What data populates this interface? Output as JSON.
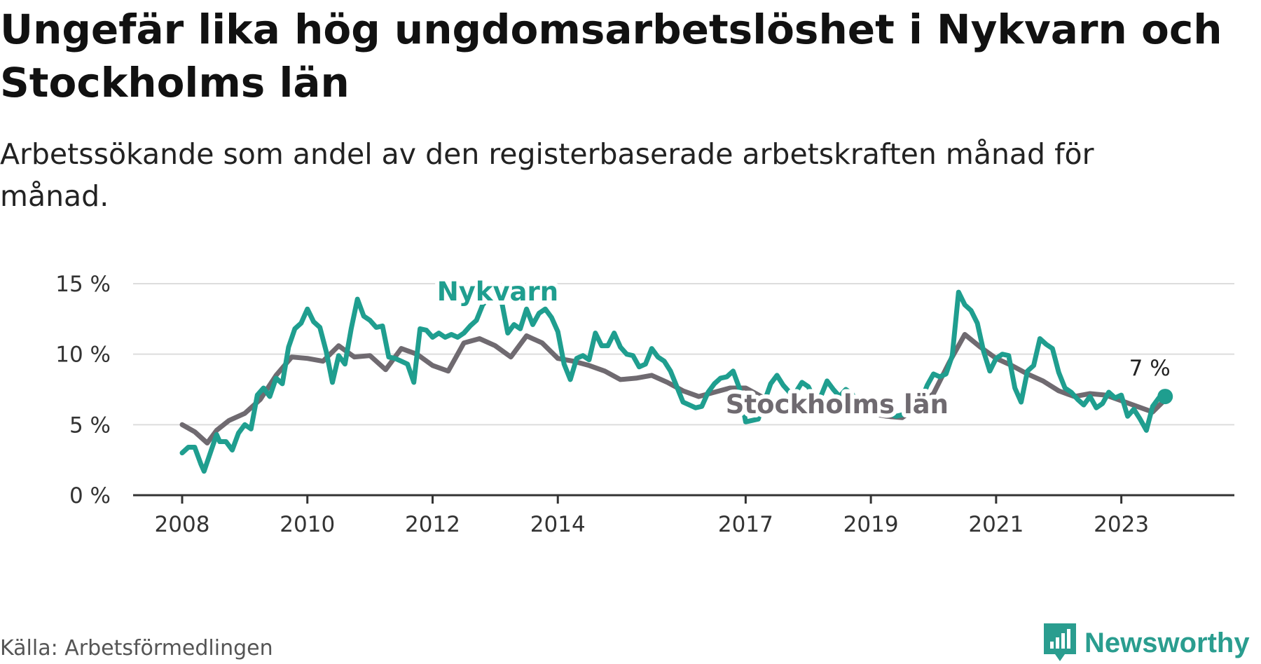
{
  "header": {
    "title": "Ungefär lika hög ungdomsarbetslöshet i Nykvarn och Stockholms län",
    "subtitle": "Arbetssökande som andel av den registerbaserade arbetskraften månad för månad."
  },
  "footer": {
    "source": "Källa: Arbetsförmedlingen",
    "brand": "Newsworthy"
  },
  "colors": {
    "nykvarn": "#1f9e8f",
    "stockholm": "#6f6a70",
    "grid": "#dddddd",
    "axis": "#333333"
  },
  "chart_data": {
    "type": "line",
    "title": "Ungefär lika hög ungdomsarbetslöshet i Nykvarn och Stockholms län",
    "xlabel": "",
    "ylabel": "",
    "xlim": [
      2008.0,
      2024.0
    ],
    "ylim": [
      0,
      15
    ],
    "yticks": [
      0,
      5,
      10,
      15
    ],
    "ytick_labels": [
      "0 %",
      "5 %",
      "10 %",
      "15 %"
    ],
    "xticks": [
      2008,
      2010,
      2012,
      2014,
      2017,
      2019,
      2021,
      2023
    ],
    "xtick_labels": [
      "2008",
      "2010",
      "2012",
      "2014",
      "2017",
      "2019",
      "2021",
      "2023"
    ],
    "grid": true,
    "end_label": "7 %",
    "series": [
      {
        "name": "Stockholms län",
        "x": [
          2008.0,
          2008.2,
          2008.4,
          2008.55,
          2008.75,
          2009.0,
          2009.25,
          2009.5,
          2009.75,
          2010.0,
          2010.25,
          2010.5,
          2010.75,
          2011.0,
          2011.25,
          2011.5,
          2011.75,
          2012.0,
          2012.25,
          2012.5,
          2012.75,
          2013.0,
          2013.25,
          2013.5,
          2013.75,
          2014.0,
          2014.25,
          2014.5,
          2014.75,
          2015.0,
          2015.25,
          2015.5,
          2015.75,
          2016.0,
          2016.25,
          2016.5,
          2016.75,
          2017.0,
          2017.25,
          2017.5,
          2017.75,
          2018.0,
          2018.25,
          2018.5,
          2018.75,
          2019.0,
          2019.25,
          2019.5,
          2019.75,
          2020.0,
          2020.25,
          2020.5,
          2020.75,
          2021.0,
          2021.25,
          2021.5,
          2021.75,
          2022.0,
          2022.25,
          2022.5,
          2022.75,
          2023.0,
          2023.25,
          2023.5,
          2023.75
        ],
        "values": [
          5.0,
          4.5,
          3.7,
          4.6,
          5.3,
          5.8,
          6.8,
          8.5,
          9.8,
          9.7,
          9.5,
          10.6,
          9.8,
          9.9,
          8.9,
          10.4,
          10.0,
          9.2,
          8.8,
          10.8,
          11.1,
          10.6,
          9.8,
          11.3,
          10.8,
          9.7,
          9.5,
          9.2,
          8.8,
          8.2,
          8.3,
          8.5,
          8.0,
          7.4,
          7.0,
          7.3,
          7.6,
          7.6,
          7.0,
          6.6,
          6.8,
          7.0,
          6.5,
          6.2,
          6.0,
          5.8,
          5.6,
          5.5,
          6.3,
          7.2,
          9.4,
          11.4,
          10.5,
          9.7,
          9.2,
          8.6,
          8.1,
          7.4,
          7.0,
          7.2,
          7.1,
          6.7,
          6.3,
          5.9,
          7.0
        ]
      },
      {
        "name": "Nykvarn",
        "x": [
          2008.0,
          2008.1,
          2008.2,
          2008.3,
          2008.35,
          2008.45,
          2008.55,
          2008.6,
          2008.7,
          2008.8,
          2008.9,
          2009.0,
          2009.1,
          2009.2,
          2009.3,
          2009.4,
          2009.5,
          2009.6,
          2009.7,
          2009.8,
          2009.9,
          2010.0,
          2010.1,
          2010.2,
          2010.3,
          2010.4,
          2010.5,
          2010.6,
          2010.7,
          2010.8,
          2010.9,
          2011.0,
          2011.1,
          2011.2,
          2011.3,
          2011.4,
          2011.5,
          2011.6,
          2011.7,
          2011.8,
          2011.9,
          2012.0,
          2012.1,
          2012.2,
          2012.3,
          2012.4,
          2012.5,
          2012.6,
          2012.7,
          2012.8,
          2012.9,
          2013.0,
          2013.1,
          2013.2,
          2013.3,
          2013.4,
          2013.5,
          2013.6,
          2013.7,
          2013.8,
          2013.9,
          2014.0,
          2014.1,
          2014.2,
          2014.3,
          2014.4,
          2014.5,
          2014.6,
          2014.7,
          2014.8,
          2014.9,
          2015.0,
          2015.1,
          2015.2,
          2015.3,
          2015.4,
          2015.5,
          2015.6,
          2015.7,
          2015.8,
          2015.9,
          2016.0,
          2016.1,
          2016.2,
          2016.3,
          2016.4,
          2016.5,
          2016.6,
          2016.7,
          2016.8,
          2016.9,
          2017.0,
          2017.2,
          2017.4,
          2017.5,
          2017.6,
          2017.7,
          2017.8,
          2017.9,
          2018.0,
          2018.1,
          2018.2,
          2018.3,
          2018.4,
          2018.5,
          2018.6,
          2018.7,
          2018.8,
          2018.9,
          2019.0,
          2019.2,
          2019.4,
          2019.6,
          2019.8,
          2019.9,
          2020.0,
          2020.1,
          2020.2,
          2020.3,
          2020.4,
          2020.5,
          2020.6,
          2020.7,
          2020.8,
          2020.9,
          2021.0,
          2021.1,
          2021.2,
          2021.3,
          2021.4,
          2021.5,
          2021.6,
          2021.7,
          2021.8,
          2021.9,
          2022.0,
          2022.1,
          2022.2,
          2022.3,
          2022.4,
          2022.5,
          2022.6,
          2022.7,
          2022.8,
          2022.9,
          2023.0,
          2023.1,
          2023.2,
          2023.3,
          2023.4,
          2023.5,
          2023.6,
          2023.7
        ],
        "values": [
          3.0,
          3.4,
          3.4,
          2.2,
          1.7,
          3.0,
          4.3,
          3.8,
          3.8,
          3.2,
          4.4,
          5.0,
          4.7,
          7.1,
          7.6,
          7.0,
          8.3,
          7.9,
          10.5,
          11.8,
          12.2,
          13.2,
          12.3,
          11.9,
          10.2,
          8.0,
          9.9,
          9.3,
          11.8,
          13.9,
          12.7,
          12.4,
          11.9,
          12.0,
          9.8,
          9.7,
          9.5,
          9.3,
          8.0,
          11.8,
          11.7,
          11.2,
          11.5,
          11.2,
          11.4,
          11.2,
          11.5,
          12.0,
          12.4,
          13.5,
          14.0,
          14.3,
          13.8,
          11.5,
          12.1,
          11.8,
          13.2,
          12.1,
          12.9,
          13.2,
          12.6,
          11.6,
          9.3,
          8.2,
          9.7,
          9.9,
          9.6,
          11.5,
          10.6,
          10.6,
          11.5,
          10.5,
          10.0,
          9.9,
          9.1,
          9.3,
          10.4,
          9.8,
          9.5,
          8.8,
          7.7,
          6.6,
          6.4,
          6.2,
          6.3,
          7.3,
          7.9,
          8.3,
          8.4,
          8.8,
          7.6,
          5.2,
          5.4,
          7.9,
          8.5,
          7.8,
          7.3,
          7.3,
          8.0,
          7.7,
          6.8,
          7.0,
          8.1,
          7.5,
          7.0,
          7.5,
          7.2,
          6.3,
          6.4,
          6.5,
          6.0,
          5.6,
          5.8,
          6.7,
          7.8,
          8.6,
          8.4,
          8.6,
          9.9,
          14.4,
          13.5,
          13.1,
          12.2,
          10.2,
          8.8,
          9.7,
          10.0,
          9.9,
          7.6,
          6.6,
          8.8,
          9.2,
          11.1,
          10.7,
          10.4,
          8.7,
          7.6,
          7.3,
          6.8,
          6.4,
          7.0,
          6.2,
          6.5,
          7.3,
          6.9,
          7.1,
          5.6,
          6.1,
          5.4,
          4.6,
          6.3,
          6.9,
          7.0
        ]
      }
    ],
    "annotations": [
      {
        "text": "Nykvarn",
        "series": "Nykvarn"
      },
      {
        "text": "Stockholms län",
        "series": "Stockholms län"
      }
    ]
  }
}
